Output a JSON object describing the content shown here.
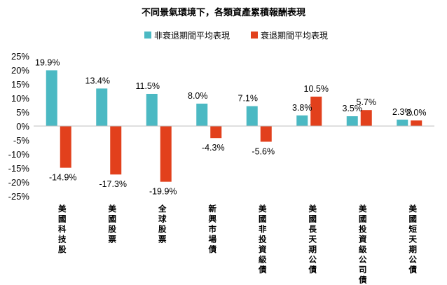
{
  "chart_data": {
    "type": "bar",
    "title": "不同景氣環境下，各類資產累積報酬表現",
    "categories": [
      "美國科技股",
      "美國股票",
      "全球股票",
      "新興市場債",
      "美國非投資級債",
      "美國長天期公債",
      "美國投資級公司債",
      "美國短天期公債"
    ],
    "series": [
      {
        "name": "非衰退期間平均表現",
        "color": "#4bb9c3",
        "values": [
          19.9,
          13.4,
          11.5,
          8.0,
          7.1,
          3.8,
          3.5,
          2.3
        ]
      },
      {
        "name": "衰退期間平均表現",
        "color": "#e2401c",
        "values": [
          -14.9,
          -17.3,
          -19.9,
          -4.3,
          -5.6,
          10.5,
          5.7,
          2.0
        ]
      }
    ],
    "value_labels": [
      [
        "19.9%",
        "13.4%",
        "11.5%",
        "8.0%",
        "7.1%",
        "3.8%",
        "3.5%",
        "2.3%"
      ],
      [
        "-14.9%",
        "-17.3%",
        "-19.9%",
        "-4.3%",
        "-5.6%",
        "10.5%",
        "5.7%",
        "2.0%"
      ]
    ],
    "ylim": [
      -25,
      25
    ],
    "yticks": [
      "25%",
      "20%",
      "15%",
      "10%",
      "5%",
      "0%",
      "-5%",
      "-10%",
      "-15%",
      "-20%",
      "-25%"
    ],
    "ytick_values": [
      25,
      20,
      15,
      10,
      5,
      0,
      -5,
      -10,
      -15,
      -20,
      -25
    ],
    "grid": false,
    "legend_position": "top-center"
  }
}
